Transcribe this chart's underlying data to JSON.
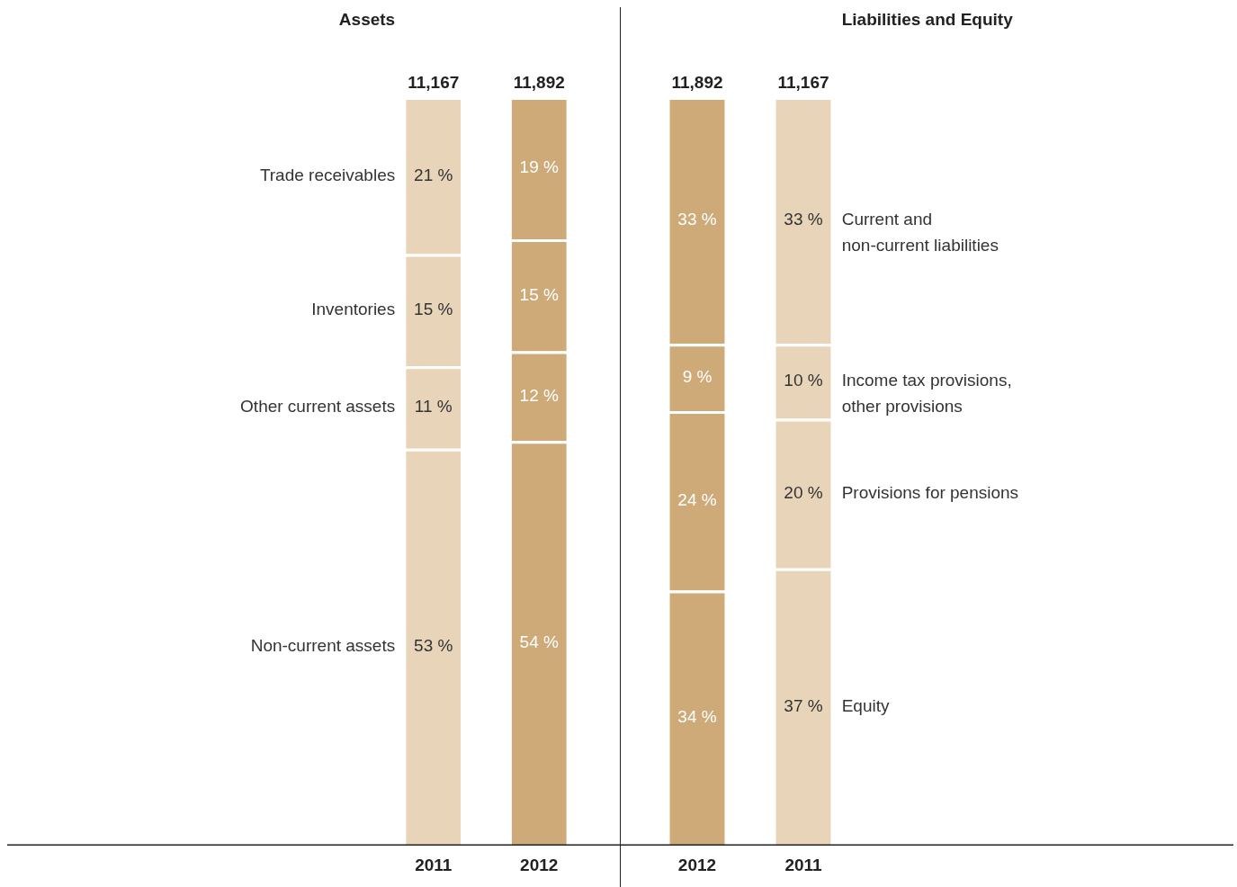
{
  "chart_data": [
    {
      "type": "bar",
      "title": "Assets",
      "categories": [
        "2011",
        "2012"
      ],
      "stacked": true,
      "annotations": [
        {
          "text": "11,167",
          "x": "2011",
          "y": 100
        },
        {
          "text": "11,892",
          "x": "2012",
          "y": 100
        }
      ],
      "series": [
        {
          "name": "Non-current assets",
          "colors": [
            "#e8d5b9",
            "#cfaa79"
          ],
          "values": [
            53,
            54
          ],
          "value_labels": [
            "53 %",
            "54 %"
          ]
        },
        {
          "name": "Other current assets",
          "colors": [
            "#e8d5b9",
            "#cfaa79"
          ],
          "values": [
            11,
            12
          ],
          "value_labels": [
            "11 %",
            "12 %"
          ]
        },
        {
          "name": "Inventories",
          "colors": [
            "#e8d5b9",
            "#cfaa79"
          ],
          "values": [
            15,
            15
          ],
          "value_labels": [
            "15 %",
            "15 %"
          ]
        },
        {
          "name": "Trade receivables",
          "colors": [
            "#e8d5b9",
            "#cfaa79"
          ],
          "values": [
            21,
            19
          ],
          "value_labels": [
            "21 %",
            "19 %"
          ]
        }
      ]
    },
    {
      "type": "bar",
      "title": "Liabilities and Equity",
      "categories": [
        "2012",
        "2011"
      ],
      "stacked": true,
      "annotations": [
        {
          "text": "11,892",
          "x": "2012",
          "y": 100
        },
        {
          "text": "11,167",
          "x": "2011",
          "y": 100
        }
      ],
      "series": [
        {
          "name": "Equity",
          "colors": [
            "#cfaa79",
            "#e8d5b9"
          ],
          "values": [
            34,
            37
          ],
          "value_labels": [
            "34 %",
            "37 %"
          ]
        },
        {
          "name": "Provisions for pensions",
          "colors": [
            "#cfaa79",
            "#e8d5b9"
          ],
          "values": [
            24,
            20
          ],
          "value_labels": [
            "24 %",
            "20 %"
          ]
        },
        {
          "name": "Income tax provisions, other provisions",
          "colors": [
            "#cfaa79",
            "#e8d5b9"
          ],
          "values": [
            9,
            10
          ],
          "value_labels": [
            "9 %",
            "10 %"
          ]
        },
        {
          "name": "Current and non-current liabilities",
          "colors": [
            "#cfaa79",
            "#e8d5b9"
          ],
          "values": [
            33,
            33
          ],
          "value_labels": [
            "33 %",
            "33 %"
          ]
        }
      ]
    }
  ]
}
